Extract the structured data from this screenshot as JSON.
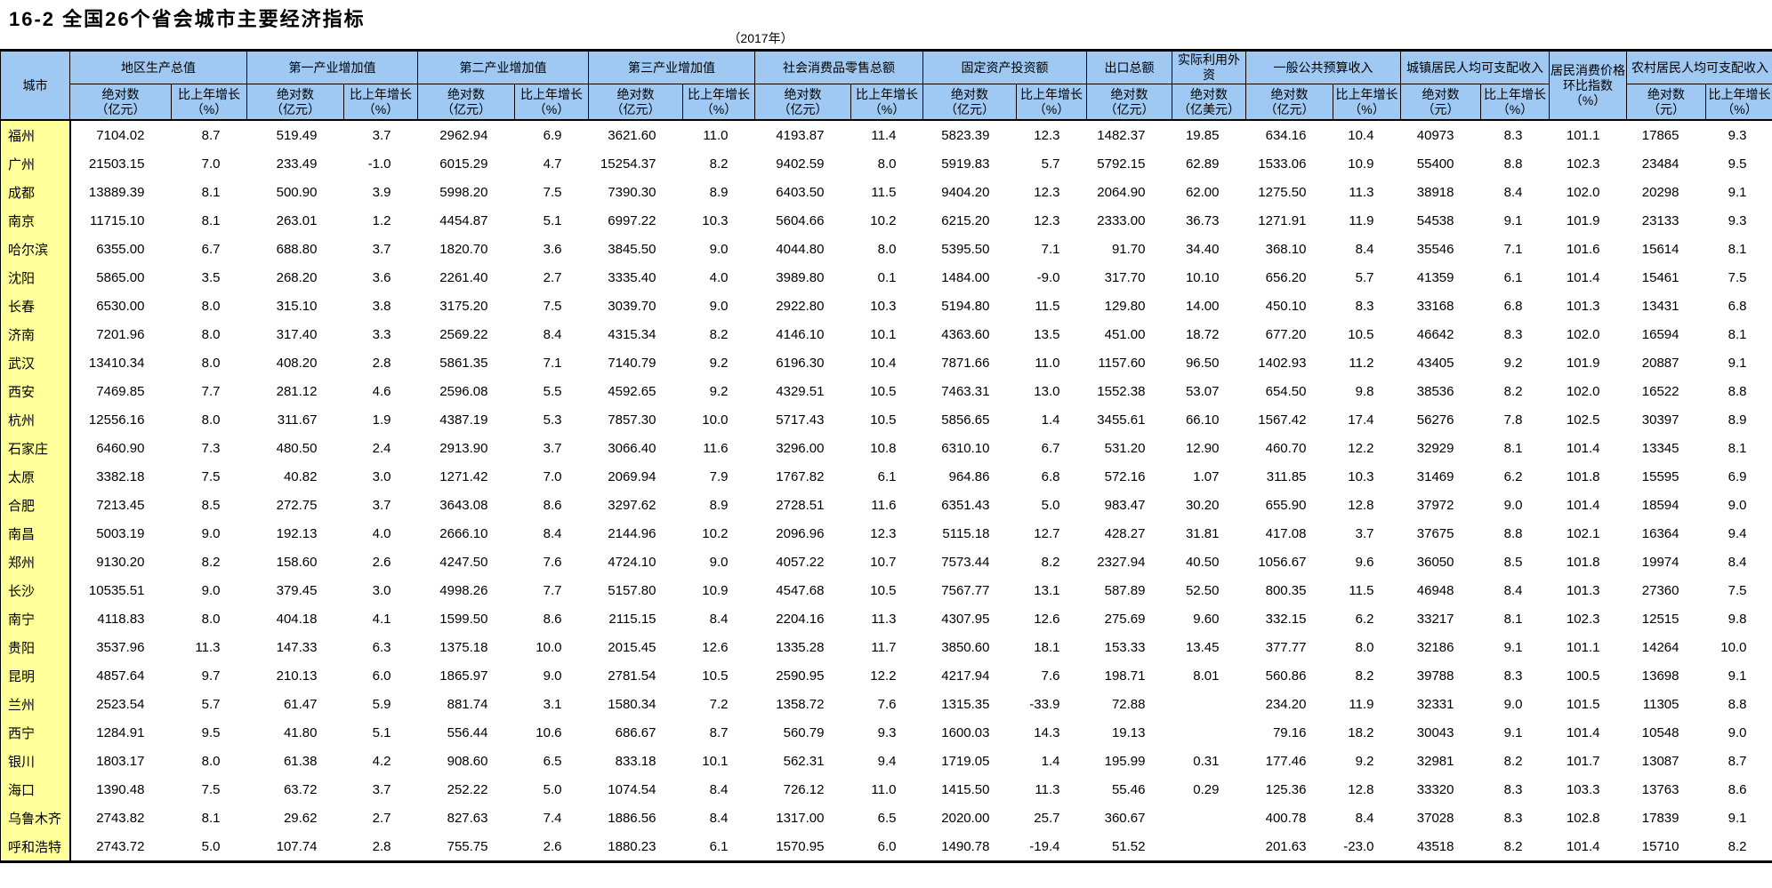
{
  "page": {
    "title": "16-2  全国26个省会城市主要经济指标",
    "year_label": "（2017年）"
  },
  "colors": {
    "header_bg": "#9FC9F2",
    "city_col_bg": "#FFFF99",
    "border": "#000000"
  },
  "table": {
    "city_header": "城市",
    "groups": [
      {
        "key": "gdp",
        "label": "地区生产总值",
        "cols": [
          {
            "name": "绝对数",
            "unit": "（亿元）"
          },
          {
            "name": "比上年增长",
            "unit": "（%）"
          }
        ]
      },
      {
        "key": "primary-industry",
        "label": "第一产业增加值",
        "cols": [
          {
            "name": "绝对数",
            "unit": "（亿元）"
          },
          {
            "name": "比上年增长",
            "unit": "（%）"
          }
        ]
      },
      {
        "key": "secondary-industry",
        "label": "第二产业增加值",
        "cols": [
          {
            "name": "绝对数",
            "unit": "（亿元）"
          },
          {
            "name": "比上年增长",
            "unit": "（%）"
          }
        ]
      },
      {
        "key": "tertiary-industry",
        "label": "第三产业增加值",
        "cols": [
          {
            "name": "绝对数",
            "unit": "（亿元）"
          },
          {
            "name": "比上年增长",
            "unit": "（%）"
          }
        ]
      },
      {
        "key": "retail-sales",
        "label": "社会消费品零售总额",
        "cols": [
          {
            "name": "绝对数",
            "unit": "（亿元）"
          },
          {
            "name": "比上年增长",
            "unit": "（%）"
          }
        ]
      },
      {
        "key": "fixed-asset-investment",
        "label": "固定资产投资额",
        "cols": [
          {
            "name": "绝对数",
            "unit": "（亿元）"
          },
          {
            "name": "比上年增长",
            "unit": "（%）"
          }
        ]
      },
      {
        "key": "exports",
        "label": "出口总额",
        "cols": [
          {
            "name": "绝对数",
            "unit": "（亿元）"
          }
        ]
      },
      {
        "key": "foreign-capital",
        "label": "实际利用外资",
        "cols": [
          {
            "name": "绝对数",
            "unit": "（亿美元）"
          }
        ]
      },
      {
        "key": "public-budget-revenue",
        "label": "一般公共预算收入",
        "cols": [
          {
            "name": "绝对数",
            "unit": "（亿元）"
          },
          {
            "name": "比上年增长",
            "unit": "（%）"
          }
        ]
      },
      {
        "key": "urban-income",
        "label": "城镇居民人均可支配收入",
        "cols": [
          {
            "name": "绝对数",
            "unit": "（元）"
          },
          {
            "name": "比上年增长",
            "unit": "（%）"
          }
        ]
      },
      {
        "key": "cpi",
        "lines": [
          "居民消费价格",
          "环比指数",
          "（%）"
        ]
      },
      {
        "key": "rural-income",
        "label": "农村居民人均可支配收入",
        "cols": [
          {
            "name": "绝对数",
            "unit": "（元）"
          },
          {
            "name": "比上年增长",
            "unit": "（%）"
          }
        ]
      }
    ],
    "rows": [
      [
        "福州",
        "7104.02",
        "8.7",
        "519.49",
        "3.7",
        "2962.94",
        "6.9",
        "3621.60",
        "11.0",
        "4193.87",
        "11.4",
        "5823.39",
        "12.3",
        "1482.37",
        "19.85",
        "634.16",
        "10.4",
        "40973",
        "8.3",
        "101.1",
        "17865",
        "9.3"
      ],
      [
        "广州",
        "21503.15",
        "7.0",
        "233.49",
        "-1.0",
        "6015.29",
        "4.7",
        "15254.37",
        "8.2",
        "9402.59",
        "8.0",
        "5919.83",
        "5.7",
        "5792.15",
        "62.89",
        "1533.06",
        "10.9",
        "55400",
        "8.8",
        "102.3",
        "23484",
        "9.5"
      ],
      [
        "成都",
        "13889.39",
        "8.1",
        "500.90",
        "3.9",
        "5998.20",
        "7.5",
        "7390.30",
        "8.9",
        "6403.50",
        "11.5",
        "9404.20",
        "12.3",
        "2064.90",
        "62.00",
        "1275.50",
        "11.3",
        "38918",
        "8.4",
        "102.0",
        "20298",
        "9.1"
      ],
      [
        "南京",
        "11715.10",
        "8.1",
        "263.01",
        "1.2",
        "4454.87",
        "5.1",
        "6997.22",
        "10.3",
        "5604.66",
        "10.2",
        "6215.20",
        "12.3",
        "2333.00",
        "36.73",
        "1271.91",
        "11.9",
        "54538",
        "9.1",
        "101.9",
        "23133",
        "9.3"
      ],
      [
        "哈尔滨",
        "6355.00",
        "6.7",
        "688.80",
        "3.7",
        "1820.70",
        "3.6",
        "3845.50",
        "9.0",
        "4044.80",
        "8.0",
        "5395.50",
        "7.1",
        "91.70",
        "34.40",
        "368.10",
        "8.4",
        "35546",
        "7.1",
        "101.6",
        "15614",
        "8.1"
      ],
      [
        "沈阳",
        "5865.00",
        "3.5",
        "268.20",
        "3.6",
        "2261.40",
        "2.7",
        "3335.40",
        "4.0",
        "3989.80",
        "0.1",
        "1484.00",
        "-9.0",
        "317.70",
        "10.10",
        "656.20",
        "5.7",
        "41359",
        "6.1",
        "101.4",
        "15461",
        "7.5"
      ],
      [
        "长春",
        "6530.00",
        "8.0",
        "315.10",
        "3.8",
        "3175.20",
        "7.5",
        "3039.70",
        "9.0",
        "2922.80",
        "10.3",
        "5194.80",
        "11.5",
        "129.80",
        "14.00",
        "450.10",
        "8.3",
        "33168",
        "6.8",
        "101.3",
        "13431",
        "6.8"
      ],
      [
        "济南",
        "7201.96",
        "8.0",
        "317.40",
        "3.3",
        "2569.22",
        "8.4",
        "4315.34",
        "8.2",
        "4146.10",
        "10.1",
        "4363.60",
        "13.5",
        "451.00",
        "18.72",
        "677.20",
        "10.5",
        "46642",
        "8.3",
        "102.0",
        "16594",
        "8.1"
      ],
      [
        "武汉",
        "13410.34",
        "8.0",
        "408.20",
        "2.8",
        "5861.35",
        "7.1",
        "7140.79",
        "9.2",
        "6196.30",
        "10.4",
        "7871.66",
        "11.0",
        "1157.60",
        "96.50",
        "1402.93",
        "11.2",
        "43405",
        "9.2",
        "101.9",
        "20887",
        "9.1"
      ],
      [
        "西安",
        "7469.85",
        "7.7",
        "281.12",
        "4.6",
        "2596.08",
        "5.5",
        "4592.65",
        "9.2",
        "4329.51",
        "10.5",
        "7463.31",
        "13.0",
        "1552.38",
        "53.07",
        "654.50",
        "9.8",
        "38536",
        "8.2",
        "102.0",
        "16522",
        "8.8"
      ],
      [
        "杭州",
        "12556.16",
        "8.0",
        "311.67",
        "1.9",
        "4387.19",
        "5.3",
        "7857.30",
        "10.0",
        "5717.43",
        "10.5",
        "5856.65",
        "1.4",
        "3455.61",
        "66.10",
        "1567.42",
        "17.4",
        "56276",
        "7.8",
        "102.5",
        "30397",
        "8.9"
      ],
      [
        "石家庄",
        "6460.90",
        "7.3",
        "480.50",
        "2.4",
        "2913.90",
        "3.7",
        "3066.40",
        "11.6",
        "3296.00",
        "10.8",
        "6310.10",
        "6.7",
        "531.20",
        "12.90",
        "460.70",
        "12.2",
        "32929",
        "8.1",
        "101.4",
        "13345",
        "8.1"
      ],
      [
        "太原",
        "3382.18",
        "7.5",
        "40.82",
        "3.0",
        "1271.42",
        "7.0",
        "2069.94",
        "7.9",
        "1767.82",
        "6.1",
        "964.86",
        "6.8",
        "572.16",
        "1.07",
        "311.85",
        "10.3",
        "31469",
        "6.2",
        "101.8",
        "15595",
        "6.9"
      ],
      [
        "合肥",
        "7213.45",
        "8.5",
        "272.75",
        "3.7",
        "3643.08",
        "8.6",
        "3297.62",
        "8.9",
        "2728.51",
        "11.6",
        "6351.43",
        "5.0",
        "983.47",
        "30.20",
        "655.90",
        "12.8",
        "37972",
        "9.0",
        "101.4",
        "18594",
        "9.0"
      ],
      [
        "南昌",
        "5003.19",
        "9.0",
        "192.13",
        "4.0",
        "2666.10",
        "8.4",
        "2144.96",
        "10.2",
        "2096.96",
        "12.3",
        "5115.18",
        "12.7",
        "428.27",
        "31.81",
        "417.08",
        "3.7",
        "37675",
        "8.8",
        "102.1",
        "16364",
        "9.4"
      ],
      [
        "郑州",
        "9130.20",
        "8.2",
        "158.60",
        "2.6",
        "4247.50",
        "7.6",
        "4724.10",
        "9.0",
        "4057.22",
        "10.7",
        "7573.44",
        "8.2",
        "2327.94",
        "40.50",
        "1056.67",
        "9.6",
        "36050",
        "8.5",
        "101.8",
        "19974",
        "8.4"
      ],
      [
        "长沙",
        "10535.51",
        "9.0",
        "379.45",
        "3.0",
        "4998.26",
        "7.7",
        "5157.80",
        "10.9",
        "4547.68",
        "10.5",
        "7567.77",
        "13.1",
        "587.89",
        "52.50",
        "800.35",
        "11.5",
        "46948",
        "8.4",
        "101.3",
        "27360",
        "7.5"
      ],
      [
        "南宁",
        "4118.83",
        "8.0",
        "404.18",
        "4.1",
        "1599.50",
        "8.6",
        "2115.15",
        "8.4",
        "2204.16",
        "11.3",
        "4307.95",
        "12.6",
        "275.69",
        "9.60",
        "332.15",
        "6.2",
        "33217",
        "8.1",
        "102.3",
        "12515",
        "9.8"
      ],
      [
        "贵阳",
        "3537.96",
        "11.3",
        "147.33",
        "6.3",
        "1375.18",
        "10.0",
        "2015.45",
        "12.6",
        "1335.28",
        "11.7",
        "3850.60",
        "18.1",
        "153.33",
        "13.45",
        "377.77",
        "8.0",
        "32186",
        "9.1",
        "101.1",
        "14264",
        "10.0"
      ],
      [
        "昆明",
        "4857.64",
        "9.7",
        "210.13",
        "6.0",
        "1865.97",
        "9.0",
        "2781.54",
        "10.5",
        "2590.95",
        "12.2",
        "4217.94",
        "7.6",
        "198.71",
        "8.01",
        "560.86",
        "8.2",
        "39788",
        "8.3",
        "100.5",
        "13698",
        "9.1"
      ],
      [
        "兰州",
        "2523.54",
        "5.7",
        "61.47",
        "5.9",
        "881.74",
        "3.1",
        "1580.34",
        "7.2",
        "1358.72",
        "7.6",
        "1315.35",
        "-33.9",
        "72.88",
        "",
        "234.20",
        "11.9",
        "32331",
        "9.0",
        "101.5",
        "11305",
        "8.8"
      ],
      [
        "西宁",
        "1284.91",
        "9.5",
        "41.80",
        "5.1",
        "556.44",
        "10.6",
        "686.67",
        "8.7",
        "560.79",
        "9.3",
        "1600.03",
        "14.3",
        "19.13",
        "",
        "79.16",
        "18.2",
        "30043",
        "9.1",
        "101.4",
        "10548",
        "9.0"
      ],
      [
        "银川",
        "1803.17",
        "8.0",
        "61.38",
        "4.2",
        "908.60",
        "6.5",
        "833.18",
        "10.1",
        "562.31",
        "9.4",
        "1719.05",
        "1.4",
        "195.99",
        "0.31",
        "177.46",
        "9.2",
        "32981",
        "8.2",
        "101.7",
        "13087",
        "8.7"
      ],
      [
        "海口",
        "1390.48",
        "7.5",
        "63.72",
        "3.7",
        "252.22",
        "5.0",
        "1074.54",
        "8.4",
        "726.12",
        "11.0",
        "1415.50",
        "11.3",
        "55.46",
        "0.29",
        "125.36",
        "12.8",
        "33320",
        "8.3",
        "103.3",
        "13763",
        "8.6"
      ],
      [
        "乌鲁木齐",
        "2743.82",
        "8.1",
        "29.62",
        "2.7",
        "827.63",
        "7.4",
        "1886.56",
        "8.4",
        "1317.00",
        "6.5",
        "2020.00",
        "25.7",
        "360.67",
        "",
        "400.78",
        "8.4",
        "37028",
        "8.3",
        "102.8",
        "17839",
        "9.1"
      ],
      [
        "呼和浩特",
        "2743.72",
        "5.0",
        "107.74",
        "2.8",
        "755.75",
        "2.6",
        "1880.23",
        "6.1",
        "1570.95",
        "6.0",
        "1490.78",
        "-19.4",
        "51.52",
        "",
        "201.63",
        "-23.0",
        "43518",
        "8.2",
        "101.4",
        "15710",
        "8.2"
      ]
    ]
  }
}
